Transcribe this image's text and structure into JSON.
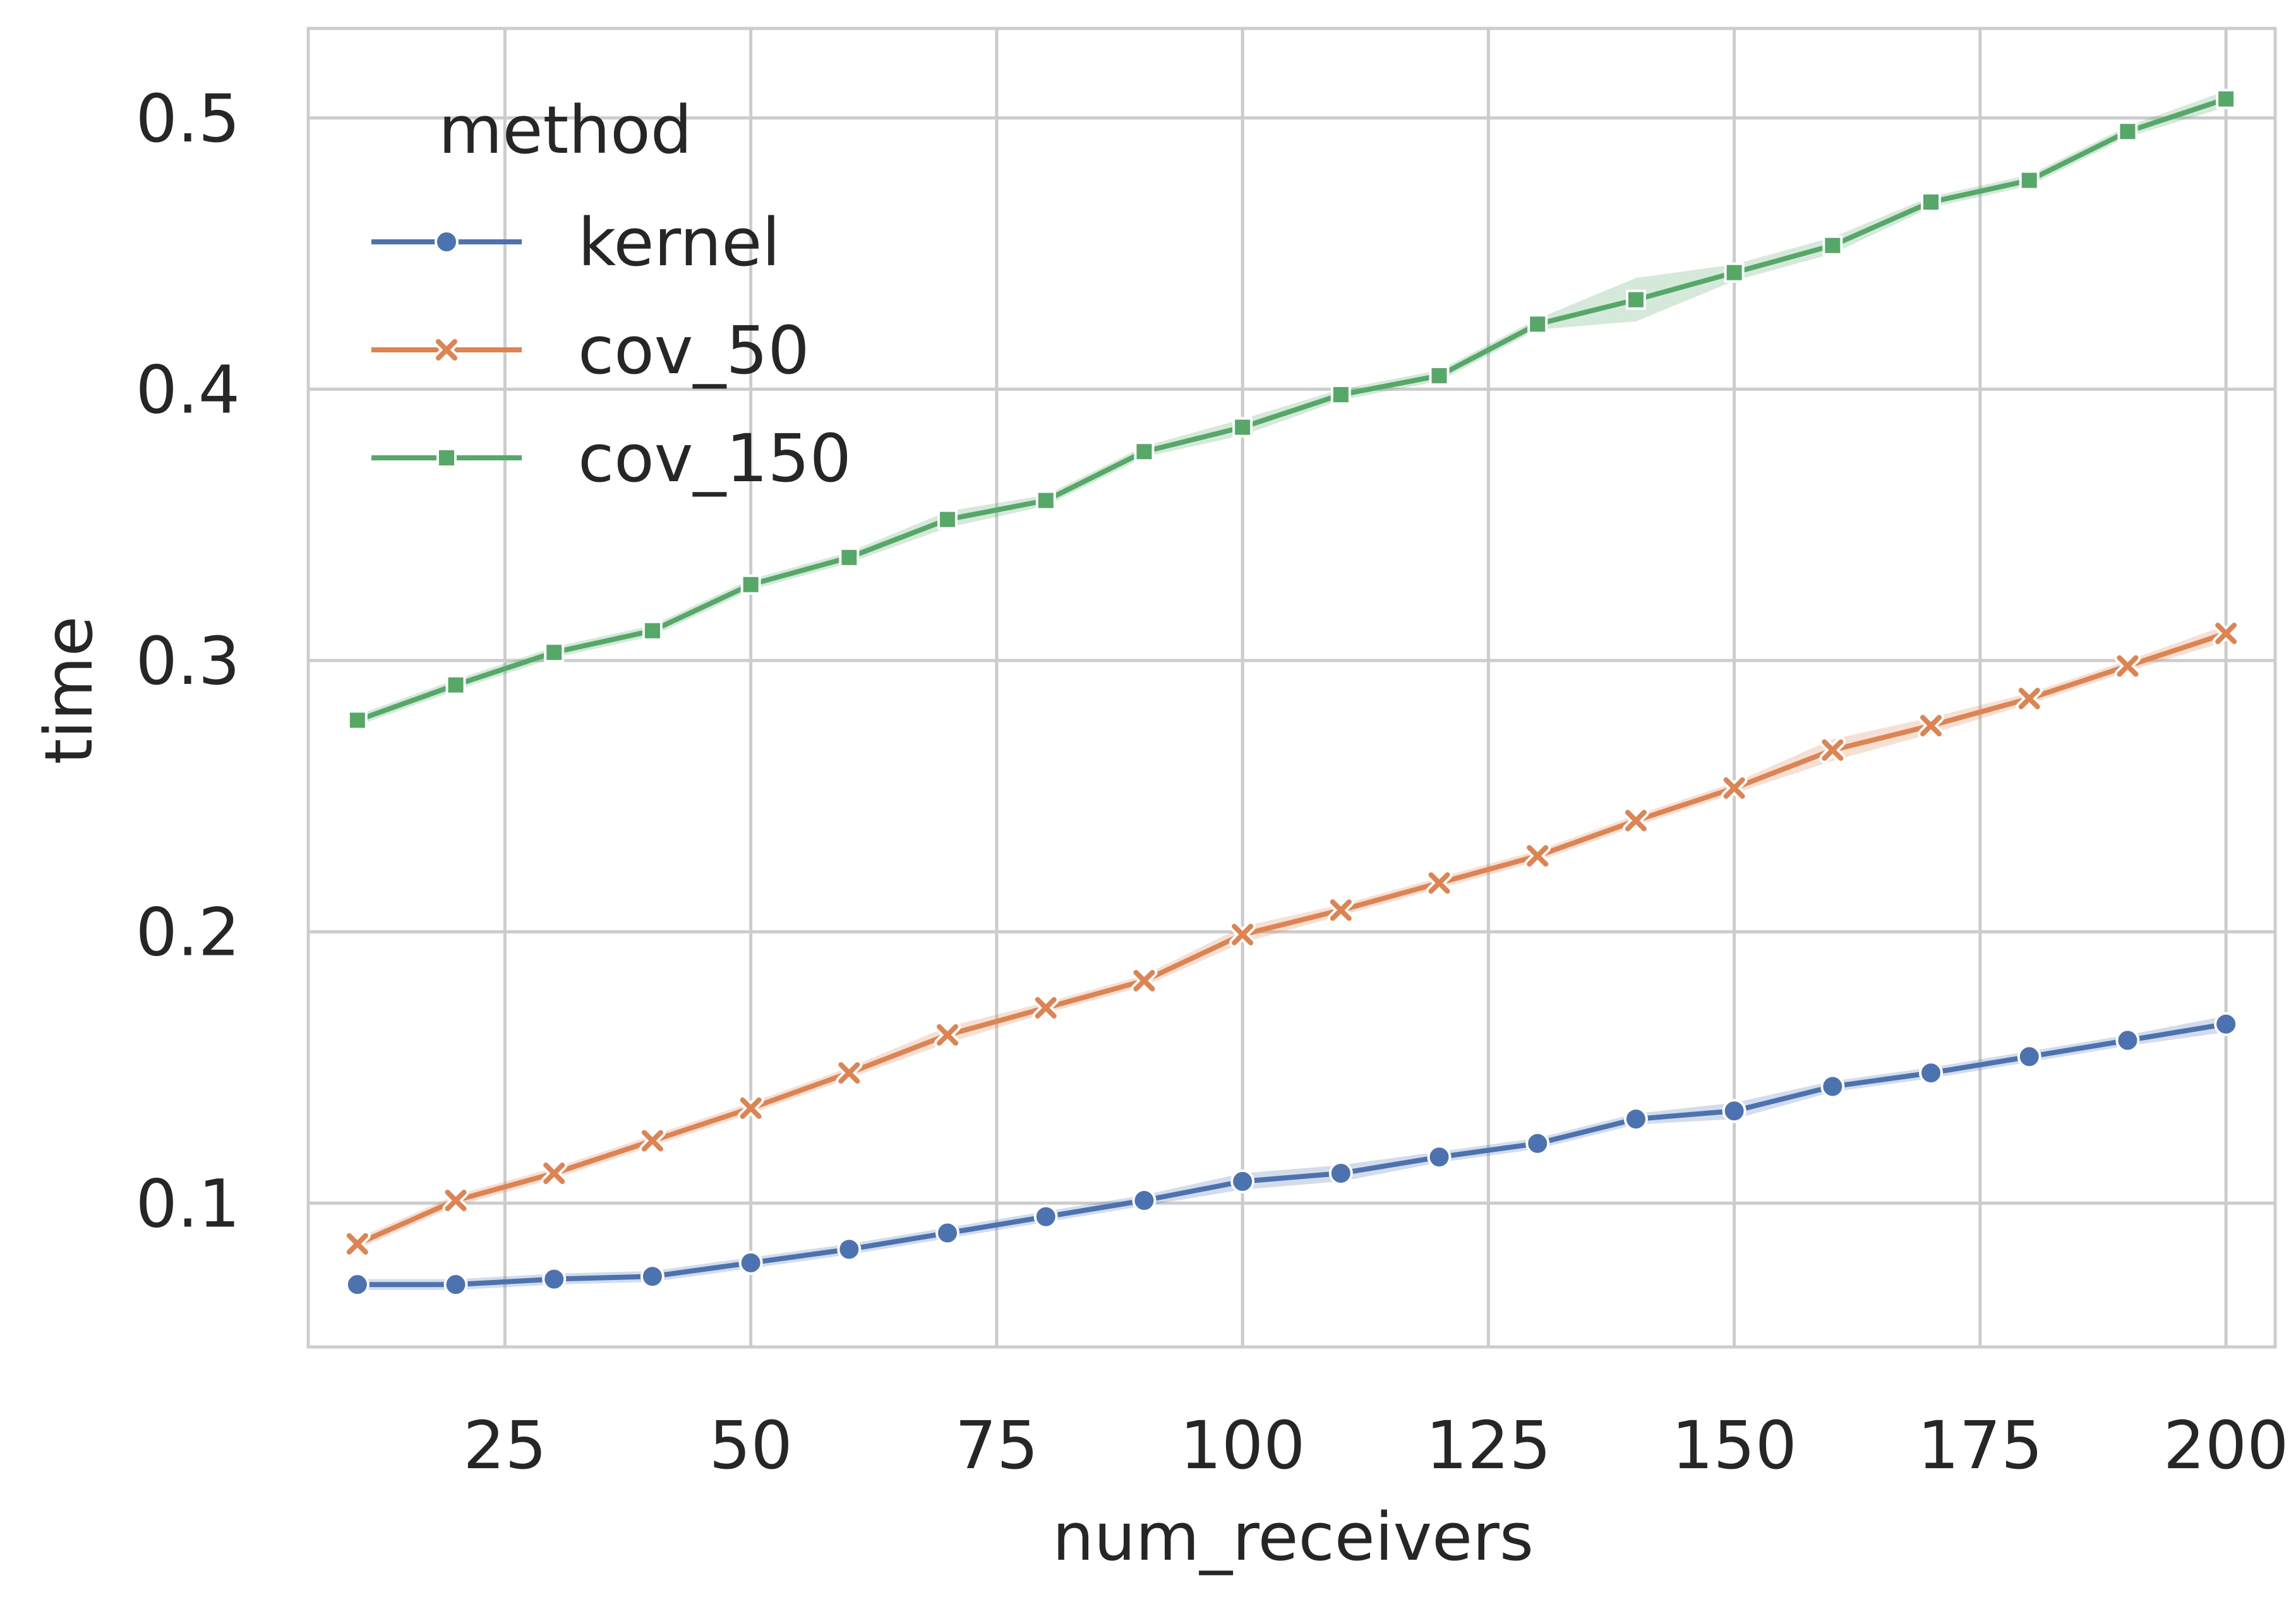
{
  "chart_data": {
    "type": "line",
    "title": "",
    "xlabel": "num_receivers",
    "ylabel": "time",
    "xlim": [
      5,
      205
    ],
    "ylim": [
      0.047,
      0.533
    ],
    "xticks": [
      25,
      50,
      75,
      100,
      125,
      150,
      175,
      200
    ],
    "yticks": [
      0.1,
      0.2,
      0.3,
      0.4,
      0.5
    ],
    "xtick_labels": [
      "25",
      "50",
      "75",
      "100",
      "125",
      "150",
      "175",
      "200"
    ],
    "ytick_labels": [
      "0.1",
      "0.2",
      "0.3",
      "0.4",
      "0.5"
    ],
    "grid": true,
    "legend": {
      "title": "method",
      "placement": "top-left"
    },
    "x": [
      10,
      20,
      30,
      40,
      50,
      60,
      70,
      80,
      90,
      100,
      110,
      120,
      130,
      140,
      150,
      160,
      170,
      180,
      190,
      200
    ],
    "series": [
      {
        "name": "kernel",
        "color": "#4c72b0",
        "marker": "circle",
        "values": [
          0.07,
          0.07,
          0.072,
          0.073,
          0.078,
          0.083,
          0.089,
          0.095,
          0.101,
          0.108,
          0.111,
          0.117,
          0.122,
          0.131,
          0.134,
          0.143,
          0.148,
          0.154,
          0.16,
          0.166
        ],
        "band": [
          0.002,
          0.002,
          0.002,
          0.002,
          0.002,
          0.002,
          0.002,
          0.002,
          0.002,
          0.003,
          0.003,
          0.002,
          0.002,
          0.002,
          0.003,
          0.002,
          0.002,
          0.002,
          0.002,
          0.003
        ]
      },
      {
        "name": "cov_50",
        "color": "#dd8452",
        "marker": "x",
        "values": [
          0.085,
          0.101,
          0.111,
          0.123,
          0.135,
          0.148,
          0.162,
          0.172,
          0.182,
          0.199,
          0.208,
          0.218,
          0.228,
          0.241,
          0.253,
          0.267,
          0.276,
          0.286,
          0.298,
          0.31
        ],
        "band": [
          0.002,
          0.002,
          0.002,
          0.002,
          0.002,
          0.002,
          0.003,
          0.002,
          0.002,
          0.003,
          0.002,
          0.002,
          0.002,
          0.002,
          0.002,
          0.004,
          0.003,
          0.002,
          0.002,
          0.003
        ]
      },
      {
        "name": "cov_150",
        "color": "#55a868",
        "marker": "square",
        "values": [
          0.278,
          0.291,
          0.303,
          0.311,
          0.328,
          0.338,
          0.352,
          0.359,
          0.377,
          0.386,
          0.398,
          0.405,
          0.424,
          0.433,
          0.443,
          0.453,
          0.469,
          0.477,
          0.495,
          0.507
        ],
        "band": [
          0.002,
          0.002,
          0.002,
          0.002,
          0.002,
          0.002,
          0.003,
          0.002,
          0.002,
          0.003,
          0.002,
          0.002,
          0.002,
          0.008,
          0.003,
          0.003,
          0.002,
          0.002,
          0.002,
          0.003
        ]
      }
    ]
  }
}
